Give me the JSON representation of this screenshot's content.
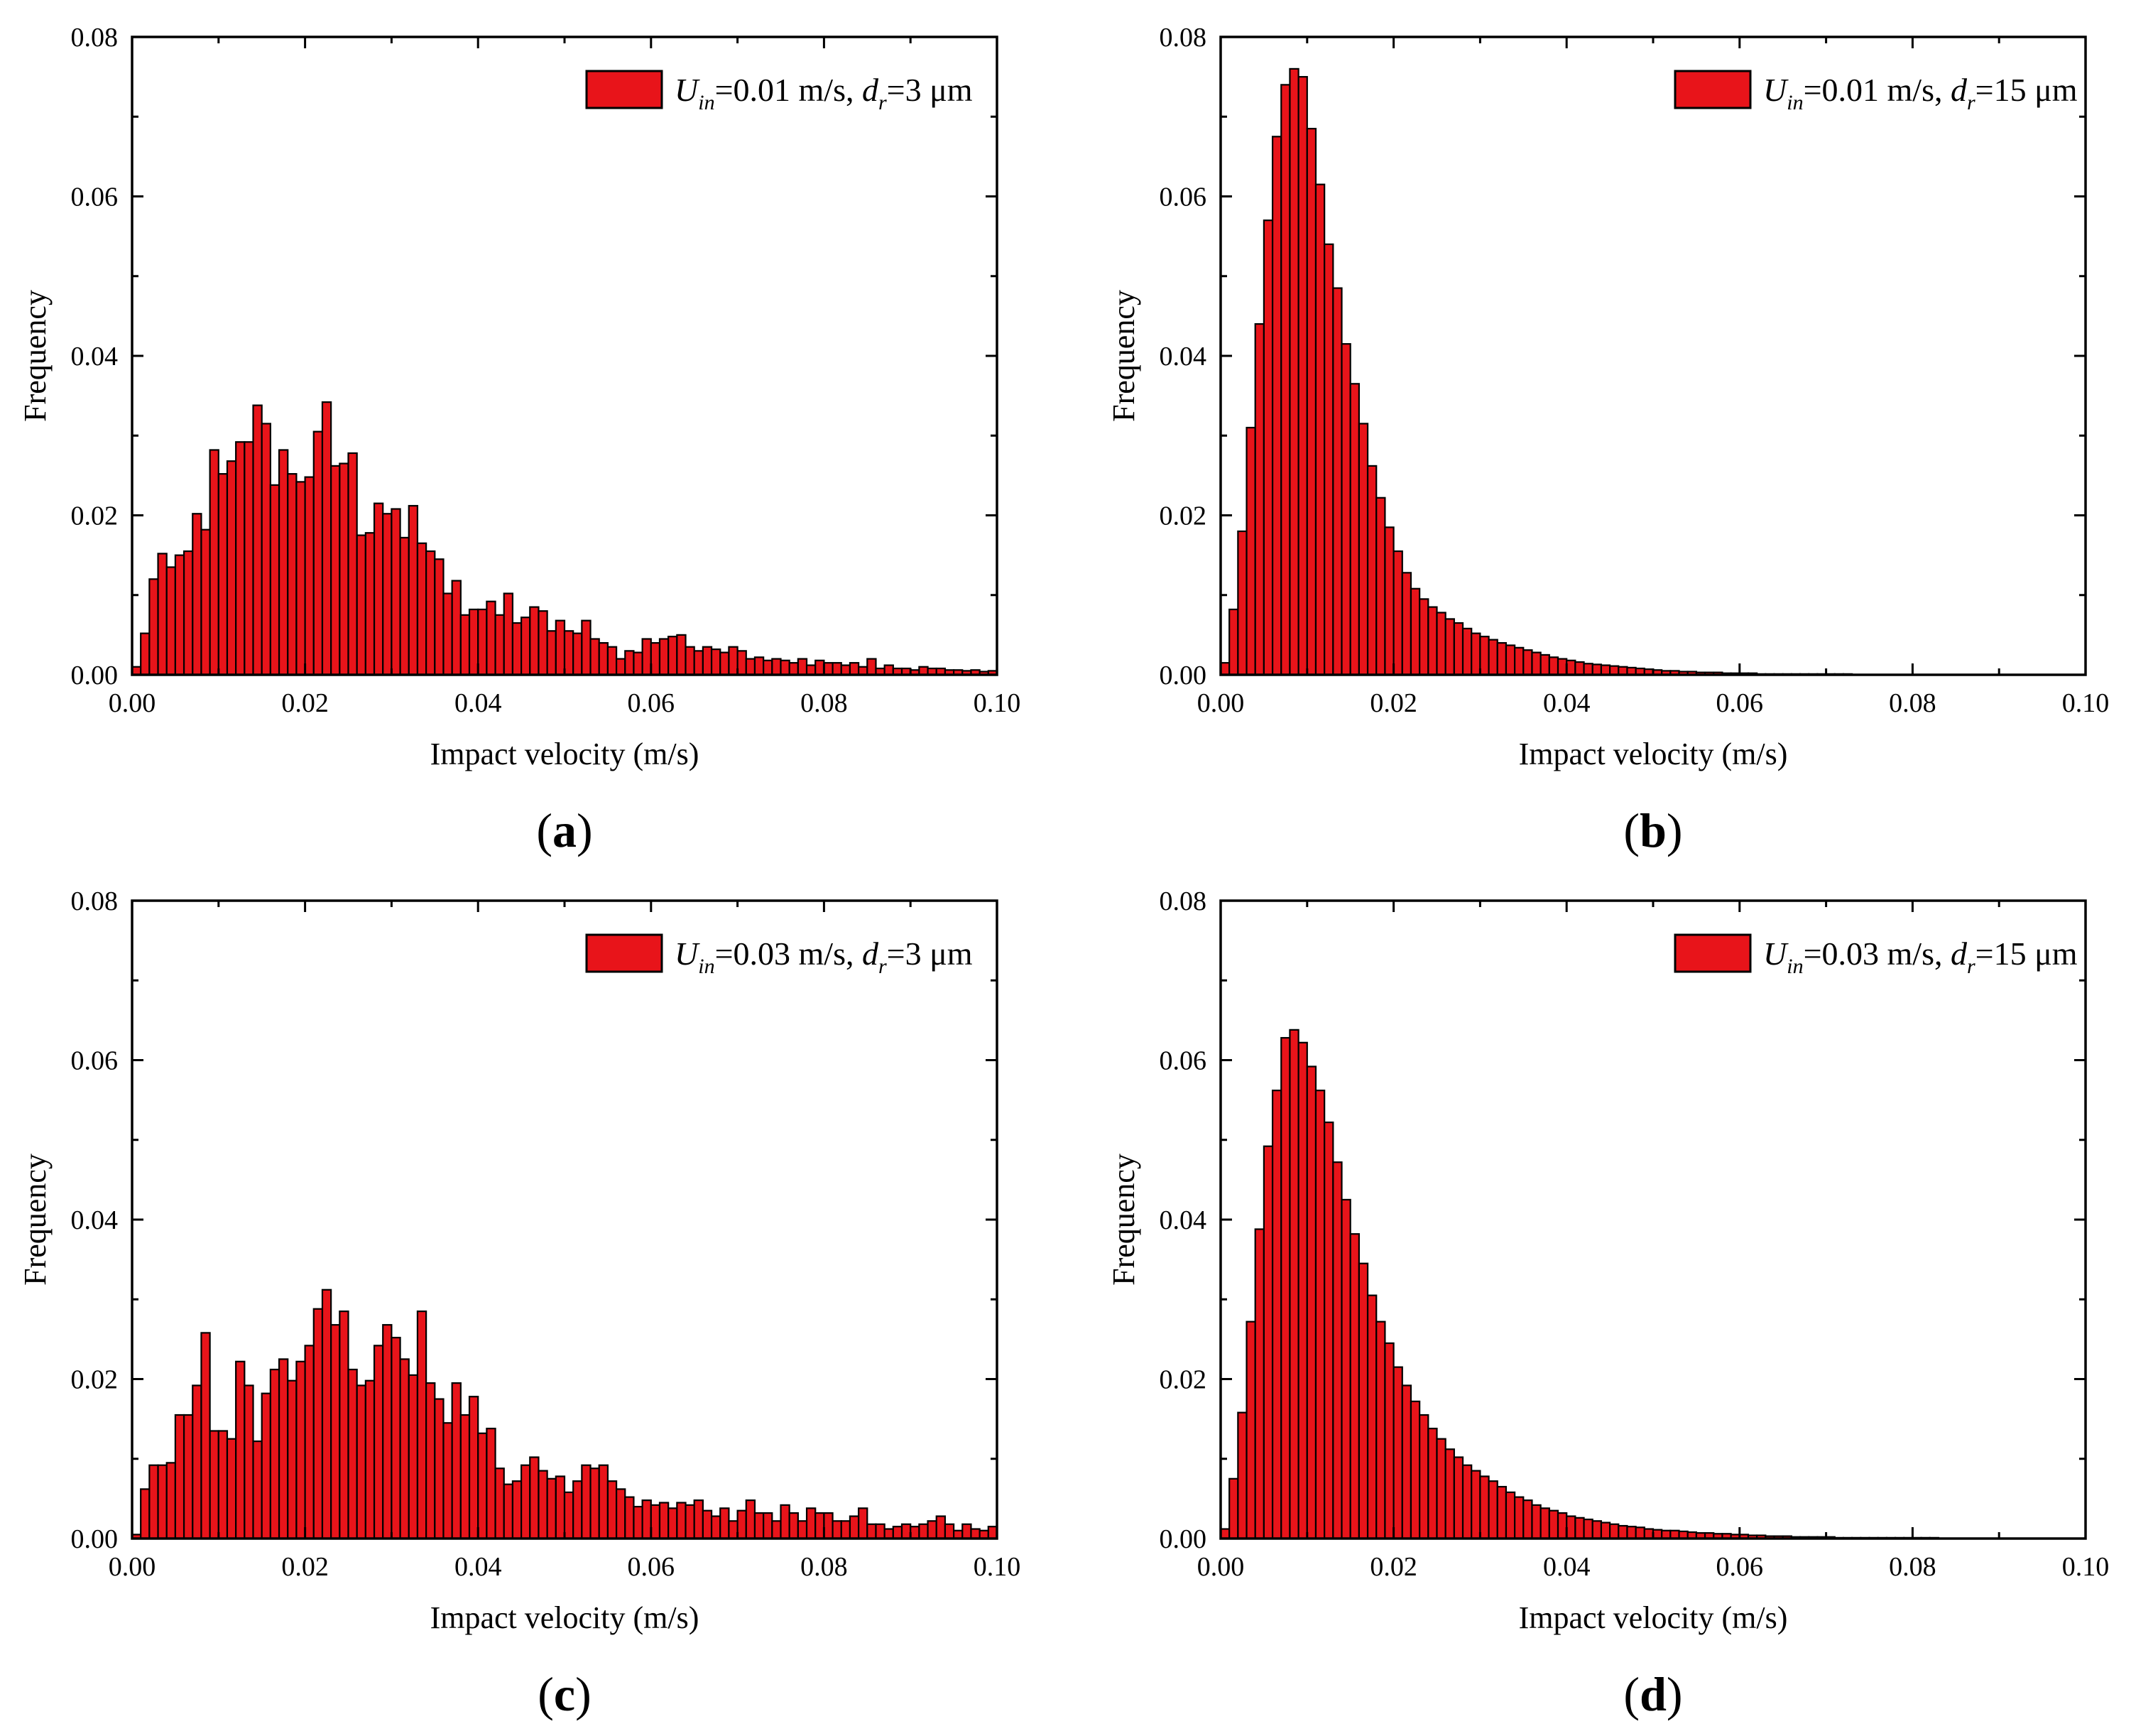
{
  "figure": {
    "panels": [
      {
        "panel_label": "a",
        "legend": {
          "u_symbol": "U",
          "u_sub": "in",
          "u_value": "=0.01 m/s, ",
          "d_symbol": "d",
          "d_sub": "r",
          "d_value": "=3 μm"
        }
      },
      {
        "panel_label": "b",
        "legend": {
          "u_symbol": "U",
          "u_sub": "in",
          "u_value": "=0.01 m/s, ",
          "d_symbol": "d",
          "d_sub": "r",
          "d_value": "=15 μm"
        }
      },
      {
        "panel_label": "c",
        "legend": {
          "u_symbol": "U",
          "u_sub": "in",
          "u_value": "=0.03 m/s, ",
          "d_symbol": "d",
          "d_sub": "r",
          "d_value": "=3 μm"
        }
      },
      {
        "panel_label": "d",
        "legend": {
          "u_symbol": "U",
          "u_sub": "in",
          "u_value": "=0.03 m/s, ",
          "d_symbol": "d",
          "d_sub": "r",
          "d_value": "=15 μm"
        }
      }
    ]
  },
  "colors": {
    "bar_fill": "#e8141a",
    "bar_stroke": "#000000",
    "axis": "#000000",
    "background": "#ffffff"
  },
  "chart_data": [
    {
      "type": "bar",
      "panel": "a",
      "xlabel": "Impact velocity (m/s)",
      "ylabel": "Frequency",
      "xlim": [
        0,
        0.1
      ],
      "ylim": [
        0,
        0.08
      ],
      "xticks": [
        "0.00",
        "0.02",
        "0.04",
        "0.06",
        "0.08",
        "0.10"
      ],
      "yticks": [
        "0.00",
        "0.02",
        "0.04",
        "0.06",
        "0.08"
      ],
      "bin_start": 0,
      "bin_width": 0.001,
      "values": [
        0.001,
        0.0052,
        0.012,
        0.0152,
        0.0135,
        0.015,
        0.0155,
        0.0202,
        0.0182,
        0.0282,
        0.0252,
        0.0268,
        0.0292,
        0.0292,
        0.0338,
        0.0315,
        0.0238,
        0.0282,
        0.0252,
        0.0242,
        0.0248,
        0.0305,
        0.0342,
        0.0262,
        0.0265,
        0.0278,
        0.0175,
        0.0178,
        0.0215,
        0.0202,
        0.0208,
        0.0172,
        0.0212,
        0.0165,
        0.0155,
        0.0145,
        0.0102,
        0.0118,
        0.0075,
        0.0082,
        0.0082,
        0.0092,
        0.0075,
        0.0102,
        0.0065,
        0.0072,
        0.0085,
        0.008,
        0.0055,
        0.0068,
        0.0055,
        0.0052,
        0.0068,
        0.0045,
        0.004,
        0.0035,
        0.002,
        0.003,
        0.0028,
        0.0045,
        0.004,
        0.0045,
        0.0048,
        0.005,
        0.0035,
        0.003,
        0.0035,
        0.0032,
        0.0028,
        0.0035,
        0.003,
        0.002,
        0.0022,
        0.0018,
        0.002,
        0.0018,
        0.0015,
        0.002,
        0.0012,
        0.0018,
        0.0015,
        0.0015,
        0.0012,
        0.0015,
        0.001,
        0.002,
        0.0008,
        0.0012,
        0.0008,
        0.0008,
        0.0006,
        0.001,
        0.0008,
        0.0008,
        0.0006,
        0.0006,
        0.0005,
        0.0006,
        0.0004,
        0.0005
      ]
    },
    {
      "type": "bar",
      "panel": "b",
      "xlabel": "Impact velocity (m/s)",
      "ylabel": "Frequency",
      "xlim": [
        0,
        0.1
      ],
      "ylim": [
        0,
        0.08
      ],
      "xticks": [
        "0.00",
        "0.02",
        "0.04",
        "0.06",
        "0.08",
        "0.10"
      ],
      "yticks": [
        "0.00",
        "0.02",
        "0.04",
        "0.06",
        "0.08"
      ],
      "bin_start": 0,
      "bin_width": 0.001,
      "values": [
        0.0015,
        0.0082,
        0.018,
        0.031,
        0.044,
        0.057,
        0.0675,
        0.074,
        0.076,
        0.075,
        0.0685,
        0.0615,
        0.054,
        0.0485,
        0.0415,
        0.0365,
        0.0315,
        0.0262,
        0.0222,
        0.0185,
        0.0155,
        0.0128,
        0.0108,
        0.0095,
        0.0085,
        0.0078,
        0.007,
        0.0065,
        0.0058,
        0.0052,
        0.0048,
        0.0044,
        0.004,
        0.0037,
        0.0034,
        0.0031,
        0.0028,
        0.0025,
        0.0022,
        0.002,
        0.0018,
        0.0016,
        0.0014,
        0.0013,
        0.0012,
        0.0011,
        0.001,
        0.0009,
        0.0008,
        0.0007,
        0.0006,
        0.0005,
        0.0005,
        0.0004,
        0.0004,
        0.0003,
        0.0003,
        0.0003,
        0.0002,
        0.0002,
        0.0002,
        0.0002,
        0.0001,
        0.0001,
        0.0001,
        0.0001,
        0.0001,
        0.0001,
        0.0001,
        0.0001,
        0.0001,
        0.0001,
        0.0001,
        0,
        0,
        0,
        0,
        0,
        0,
        0,
        0,
        0,
        0,
        0,
        0,
        0,
        0,
        0,
        0,
        0,
        0,
        0,
        0,
        0,
        0,
        0,
        0,
        0,
        0,
        0
      ]
    },
    {
      "type": "bar",
      "panel": "c",
      "xlabel": "Impact velocity (m/s)",
      "ylabel": "Frequency",
      "xlim": [
        0,
        0.1
      ],
      "ylim": [
        0,
        0.08
      ],
      "xticks": [
        "0.00",
        "0.02",
        "0.04",
        "0.06",
        "0.08",
        "0.10"
      ],
      "yticks": [
        "0.00",
        "0.02",
        "0.04",
        "0.06",
        "0.08"
      ],
      "bin_start": 0,
      "bin_width": 0.001,
      "values": [
        0.0005,
        0.0062,
        0.0092,
        0.0092,
        0.0095,
        0.0155,
        0.0155,
        0.0192,
        0.0258,
        0.0135,
        0.0135,
        0.0125,
        0.0222,
        0.0192,
        0.0122,
        0.0182,
        0.0212,
        0.0225,
        0.0198,
        0.0222,
        0.0242,
        0.0288,
        0.0312,
        0.0268,
        0.0285,
        0.0212,
        0.0192,
        0.0198,
        0.0242,
        0.0268,
        0.0252,
        0.0225,
        0.0205,
        0.0285,
        0.0195,
        0.0175,
        0.0145,
        0.0195,
        0.0155,
        0.0178,
        0.0132,
        0.0138,
        0.0088,
        0.0068,
        0.0072,
        0.0092,
        0.0102,
        0.0085,
        0.0075,
        0.0078,
        0.0058,
        0.0072,
        0.0092,
        0.0088,
        0.0092,
        0.0072,
        0.0062,
        0.0052,
        0.004,
        0.0048,
        0.0042,
        0.0045,
        0.0038,
        0.0045,
        0.0042,
        0.0048,
        0.0035,
        0.0028,
        0.0038,
        0.0022,
        0.0035,
        0.0048,
        0.0032,
        0.0032,
        0.0022,
        0.0042,
        0.0032,
        0.0022,
        0.0038,
        0.0032,
        0.0032,
        0.0022,
        0.0022,
        0.0028,
        0.0038,
        0.0018,
        0.0018,
        0.0012,
        0.0015,
        0.0018,
        0.0015,
        0.0018,
        0.0022,
        0.0028,
        0.0018,
        0.001,
        0.0018,
        0.0012,
        0.001,
        0.0015
      ]
    },
    {
      "type": "bar",
      "panel": "d",
      "xlabel": "Impact velocity (m/s)",
      "ylabel": "Frequency",
      "xlim": [
        0,
        0.1
      ],
      "ylim": [
        0,
        0.08
      ],
      "xticks": [
        "0.00",
        "0.02",
        "0.04",
        "0.06",
        "0.08",
        "0.10"
      ],
      "yticks": [
        "0.00",
        "0.02",
        "0.04",
        "0.06",
        "0.08"
      ],
      "bin_start": 0,
      "bin_width": 0.001,
      "values": [
        0.0012,
        0.0075,
        0.0158,
        0.0272,
        0.0388,
        0.0492,
        0.0562,
        0.0628,
        0.0638,
        0.0622,
        0.0592,
        0.0562,
        0.0522,
        0.0472,
        0.0425,
        0.0382,
        0.0345,
        0.0305,
        0.0272,
        0.0245,
        0.0215,
        0.0192,
        0.0172,
        0.0155,
        0.0138,
        0.0125,
        0.0112,
        0.0102,
        0.0092,
        0.0085,
        0.0078,
        0.0072,
        0.0065,
        0.0058,
        0.0052,
        0.0048,
        0.0042,
        0.0038,
        0.0035,
        0.0032,
        0.0028,
        0.0026,
        0.0024,
        0.0022,
        0.002,
        0.0018,
        0.0016,
        0.0015,
        0.0014,
        0.0012,
        0.0011,
        0.001,
        0.001,
        0.0009,
        0.0008,
        0.0007,
        0.0007,
        0.0006,
        0.0006,
        0.0005,
        0.0005,
        0.0004,
        0.0004,
        0.0003,
        0.0003,
        0.0003,
        0.0002,
        0.0002,
        0.0002,
        0.0002,
        0.0002,
        0.0001,
        0.0001,
        0.0001,
        0.0001,
        0.0001,
        0.0001,
        0.0001,
        0.0001,
        0.0001,
        0.0001,
        0.0001,
        0.0001,
        0,
        0,
        0,
        0,
        0,
        0,
        0,
        0,
        0,
        0,
        0,
        0,
        0,
        0,
        0,
        0,
        0
      ]
    }
  ]
}
